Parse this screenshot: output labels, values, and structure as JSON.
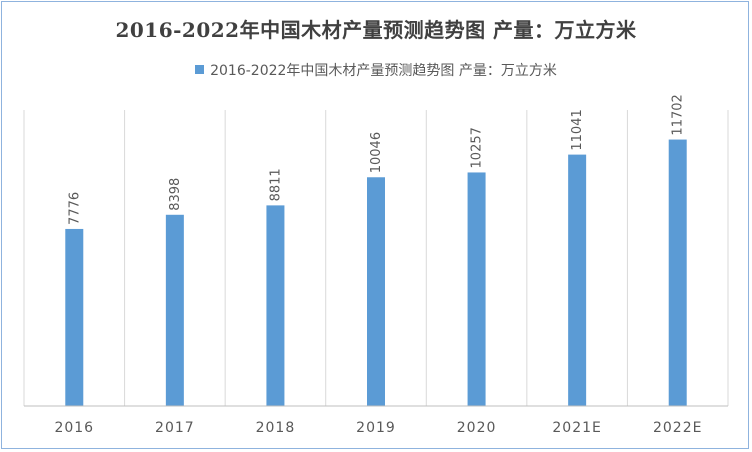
{
  "chart_data": {
    "type": "bar",
    "title": "2016-2022年中国木材产量预测趋势图 产量：万立方米",
    "categories": [
      "2016",
      "2017",
      "2018",
      "2019",
      "2020",
      "2021E",
      "2022E"
    ],
    "series": [
      {
        "name": "2016-2022年中国木材产量预测趋势图 产量：万立方米",
        "values": [
          7776,
          8398,
          8811,
          10046,
          10257,
          11041,
          11702
        ]
      }
    ],
    "ylim": [
      0,
      13000
    ],
    "grid": "vertical",
    "legend": "top-center",
    "bar_color": "#5b9bd5",
    "xlabel": "",
    "ylabel": ""
  }
}
